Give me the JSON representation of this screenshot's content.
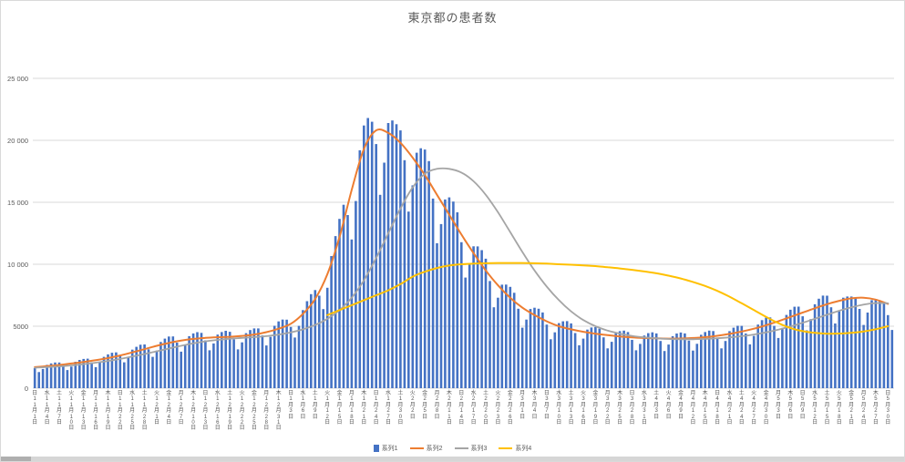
{
  "title": "東京都の患者数",
  "colors": {
    "grid": "#D9D9D9",
    "axis_text": "#595959",
    "title_text": "#595959",
    "series1": "#4472C4",
    "series2": "#ED7D31",
    "series3": "#A5A5A5",
    "series4": "#FFC000"
  },
  "y_axis": {
    "min": 0,
    "max": 25000,
    "step": 5000,
    "tick_labels": [
      "0",
      "5000",
      "10 000",
      "15 000",
      "20 000",
      "25 000"
    ]
  },
  "legend": {
    "items": [
      {
        "label": "系列1",
        "type": "bar",
        "color": "#4472C4"
      },
      {
        "label": "系列2",
        "type": "line",
        "color": "#ED7D31"
      },
      {
        "label": "系列3",
        "type": "line",
        "color": "#A5A5A5"
      },
      {
        "label": "系列4",
        "type": "line",
        "color": "#FFC000"
      }
    ]
  },
  "chart_data": {
    "type": "combo",
    "title": "東京都の患者数",
    "x_start": "11月1日",
    "x_end": "5月31日",
    "num_days": 212,
    "ylim": [
      0,
      25000
    ],
    "grid": "horizontal-only",
    "legend_position": "bottom",
    "x_tick_interval_days": 3,
    "x_ticks": [
      [
        "日",
        "11月1日"
      ],
      [
        "水",
        "11月4日"
      ],
      [
        "土",
        "11月7日"
      ],
      [
        "火",
        "11月10日"
      ],
      [
        "金",
        "11月13日"
      ],
      [
        "月",
        "11月16日"
      ],
      [
        "木",
        "11月19日"
      ],
      [
        "日",
        "11月22日"
      ],
      [
        "水",
        "11月25日"
      ],
      [
        "土",
        "11月28日"
      ],
      [
        "火",
        "12月1日"
      ],
      [
        "金",
        "12月4日"
      ],
      [
        "月",
        "12月7日"
      ],
      [
        "木",
        "12月10日"
      ],
      [
        "日",
        "12月13日"
      ],
      [
        "水",
        "12月16日"
      ],
      [
        "土",
        "12月19日"
      ],
      [
        "火",
        "12月22日"
      ],
      [
        "金",
        "12月25日"
      ],
      [
        "月",
        "12月28日"
      ],
      [
        "木",
        "12月31日"
      ],
      [
        "日",
        "1月3日"
      ],
      [
        "水",
        "1月6日"
      ],
      [
        "土",
        "1月9日"
      ],
      [
        "火",
        "1月12日"
      ],
      [
        "金",
        "1月15日"
      ],
      [
        "月",
        "1月18日"
      ],
      [
        "木",
        "1月21日"
      ],
      [
        "日",
        "1月24日"
      ],
      [
        "水",
        "1月27日"
      ],
      [
        "土",
        "1月30日"
      ],
      [
        "火",
        "2月2日"
      ],
      [
        "金",
        "2月5日"
      ],
      [
        "月",
        "2月8日"
      ],
      [
        "木",
        "2月11日"
      ],
      [
        "日",
        "2月14日"
      ],
      [
        "水",
        "2月17日"
      ],
      [
        "土",
        "2月20日"
      ],
      [
        "火",
        "2月23日"
      ],
      [
        "金",
        "2月26日"
      ],
      [
        "月",
        "3月1日"
      ],
      [
        "木",
        "3月4日"
      ],
      [
        "日",
        "3月7日"
      ],
      [
        "水",
        "3月10日"
      ],
      [
        "土",
        "3月13日"
      ],
      [
        "火",
        "3月16日"
      ],
      [
        "金",
        "3月19日"
      ],
      [
        "月",
        "3月22日"
      ],
      [
        "木",
        "3月25日"
      ],
      [
        "日",
        "3月28日"
      ],
      [
        "水",
        "3月31日"
      ],
      [
        "土",
        "4月3日"
      ],
      [
        "火",
        "4月6日"
      ],
      [
        "金",
        "4月9日"
      ],
      [
        "月",
        "4月12日"
      ],
      [
        "木",
        "4月15日"
      ],
      [
        "日",
        "4月18日"
      ],
      [
        "水",
        "4月21日"
      ],
      [
        "土",
        "4月24日"
      ],
      [
        "火",
        "4月27日"
      ],
      [
        "金",
        "4月30日"
      ],
      [
        "月",
        "5月3日"
      ],
      [
        "木",
        "5月6日"
      ],
      [
        "日",
        "5月9日"
      ],
      [
        "水",
        "5月12日"
      ],
      [
        "土",
        "5月15日"
      ],
      [
        "火",
        "5月18日"
      ],
      [
        "金",
        "5月21日"
      ],
      [
        "月",
        "5月24日"
      ],
      [
        "木",
        "5月27日"
      ],
      [
        "日",
        "5月30日"
      ]
    ],
    "series": [
      {
        "name": "系列1",
        "type": "bar",
        "color": "#4472C4",
        "start_day": 0,
        "step_days": 1,
        "values": [
          1620,
          1300,
          1550,
          1880,
          2000,
          2070,
          2070,
          1810,
          1460,
          1740,
          2130,
          2280,
          2360,
          2380,
          2090,
          1700,
          2060,
          2530,
          2730,
          2860,
          2890,
          2570,
          2090,
          2530,
          3110,
          3340,
          3510,
          3530,
          3140,
          2530,
          3040,
          3730,
          4000,
          4170,
          4180,
          3680,
          2950,
          3490,
          4200,
          4420,
          4520,
          4460,
          3860,
          3060,
          3610,
          4320,
          4530,
          4630,
          4550,
          3940,
          3130,
          3700,
          4440,
          4690,
          4820,
          4820,
          4260,
          3450,
          4140,
          5040,
          5390,
          5540,
          5530,
          4940,
          4090,
          5030,
          6300,
          7020,
          7590,
          7920,
          7460,
          6380,
          8100,
          10660,
          12270,
          13660,
          14800,
          13970,
          12000,
          15100,
          19200,
          21200,
          21800,
          21500,
          19700,
          15600,
          18200,
          21400,
          21600,
          21300,
          20800,
          18400,
          14250,
          16370,
          19000,
          19360,
          19260,
          18320,
          15300,
          11700,
          13240,
          15230,
          15400,
          15060,
          14190,
          11780,
          8930,
          10030,
          11450,
          11440,
          11140,
          10450,
          8650,
          6530,
          7300,
          8350,
          8360,
          8180,
          7700,
          6410,
          4880,
          5540,
          6390,
          6490,
          6410,
          6110,
          5130,
          3950,
          4510,
          5250,
          5400,
          5410,
          5230,
          4450,
          3460,
          4000,
          4730,
          4900,
          4930,
          4800,
          4100,
          3210,
          3740,
          4420,
          4600,
          4650,
          4530,
          3900,
          3060,
          3570,
          4250,
          4440,
          4510,
          4420,
          3810,
          3000,
          3520,
          4200,
          4410,
          4490,
          4420,
          3840,
          3040,
          3580,
          4310,
          4530,
          4650,
          4610,
          4020,
          3210,
          3810,
          4600,
          4880,
          5040,
          5030,
          4410,
          3540,
          4220,
          5130,
          5490,
          5690,
          5710,
          5030,
          4050,
          4860,
          5910,
          6330,
          6570,
          6580,
          5800,
          4670,
          5570,
          6770,
          7220,
          7470,
          7460,
          6530,
          5220,
          6200,
          7300,
          7400,
          7400,
          7250,
          6400,
          5100,
          6100,
          7100,
          7200,
          7050,
          6800,
          5900,
          4700
        ]
      },
      {
        "name": "系列2",
        "type": "line",
        "color": "#ED7D31",
        "start_day": 0,
        "step_days": 3,
        "values": [
          1700,
          1780,
          1870,
          1990,
          2120,
          2260,
          2430,
          2640,
          2890,
          3150,
          3420,
          3650,
          3840,
          3980,
          4060,
          4110,
          4150,
          4220,
          4330,
          4520,
          4800,
          5200,
          6000,
          7200,
          9200,
          12200,
          16000,
          19300,
          20800,
          20600,
          19800,
          18600,
          17200,
          15600,
          14000,
          12400,
          10900,
          9500,
          8300,
          7300,
          6500,
          5900,
          5400,
          5000,
          4750,
          4550,
          4400,
          4280,
          4180,
          4100,
          4050,
          4020,
          4000,
          4010,
          4050,
          4120,
          4230,
          4380,
          4570,
          4800,
          5080,
          5400,
          5750,
          6100,
          6450,
          6780,
          7050,
          7250,
          7300,
          7150,
          6800
        ]
      },
      {
        "name": "系列3",
        "type": "line",
        "color": "#A5A5A5",
        "start_day": 0,
        "step_days": 3,
        "values": [
          1650,
          1700,
          1760,
          1840,
          1940,
          2060,
          2200,
          2360,
          2550,
          2760,
          2980,
          3200,
          3420,
          3620,
          3780,
          3900,
          3990,
          4060,
          4120,
          4200,
          4320,
          4500,
          4750,
          5100,
          5600,
          6300,
          7300,
          8700,
          10500,
          12500,
          14500,
          16200,
          17300,
          17700,
          17700,
          17400,
          16700,
          15600,
          14200,
          12600,
          11000,
          9500,
          8200,
          7100,
          6200,
          5500,
          5000,
          4650,
          4400,
          4220,
          4100,
          4020,
          3970,
          3950,
          3950,
          3980,
          4030,
          4100,
          4200,
          4330,
          4500,
          4720,
          4980,
          5280,
          5600,
          5930,
          6250,
          6530,
          6750,
          6870,
          6850
        ]
      },
      {
        "name": "系列4",
        "type": "line",
        "color": "#FFC000",
        "start_day": 72,
        "step_days": 3,
        "values": [
          5900,
          6300,
          6700,
          7100,
          7500,
          7900,
          8400,
          9000,
          9400,
          9700,
          9900,
          10000,
          10050,
          10080,
          10100,
          10100,
          10100,
          10080,
          10050,
          10000,
          9960,
          9910,
          9850,
          9760,
          9660,
          9550,
          9420,
          9270,
          9080,
          8850,
          8570,
          8250,
          7850,
          7380,
          6850,
          6300,
          5750,
          5250,
          4850,
          4600,
          4460,
          4400,
          4410,
          4470,
          4580,
          4760,
          5000
        ]
      }
    ]
  }
}
